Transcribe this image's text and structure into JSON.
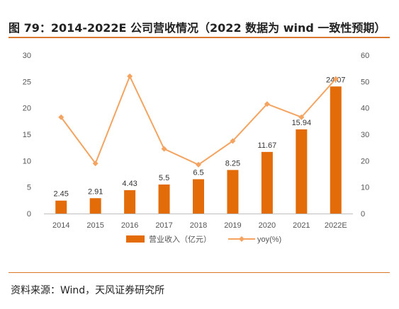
{
  "header": {
    "title": "图 79：2014-2022E 公司营收情况（2022 数据为 wind 一致性预期）"
  },
  "footer": {
    "source": "资料来源：Wind，天风证券研究所"
  },
  "colors": {
    "bar": "#E36C09",
    "line": "#F4A460",
    "accent": "#D9782C"
  },
  "chart_data": {
    "type": "bar",
    "categories": [
      "2014",
      "2015",
      "2016",
      "2017",
      "2018",
      "2019",
      "2020",
      "2021",
      "2022E"
    ],
    "series": [
      {
        "name": "营业收入（亿元）",
        "type": "bar",
        "axis": "left",
        "values": [
          2.45,
          2.91,
          4.43,
          5.5,
          6.5,
          8.25,
          11.67,
          15.94,
          24.07
        ],
        "labels": [
          "2.45",
          "2.91",
          "4.43",
          "5.5",
          "6.5",
          "8.25",
          "11.67",
          "15.94",
          "24.07"
        ]
      },
      {
        "name": "yoy(%)",
        "type": "line",
        "axis": "right",
        "values": [
          36.5,
          19,
          52,
          24.5,
          18.5,
          27.5,
          41.5,
          36.5,
          51
        ]
      }
    ],
    "ylim_left": [
      0,
      30
    ],
    "yticks_left": [
      "0",
      "5",
      "10",
      "15",
      "20",
      "25",
      "30"
    ],
    "ylim_right": [
      0,
      60
    ],
    "yticks_right": [
      "0",
      "10",
      "20",
      "30",
      "40",
      "50",
      "60"
    ],
    "legend": [
      "营业收入（亿元）",
      "yoy(%)"
    ],
    "legend_position": "bottom",
    "grid": false
  }
}
